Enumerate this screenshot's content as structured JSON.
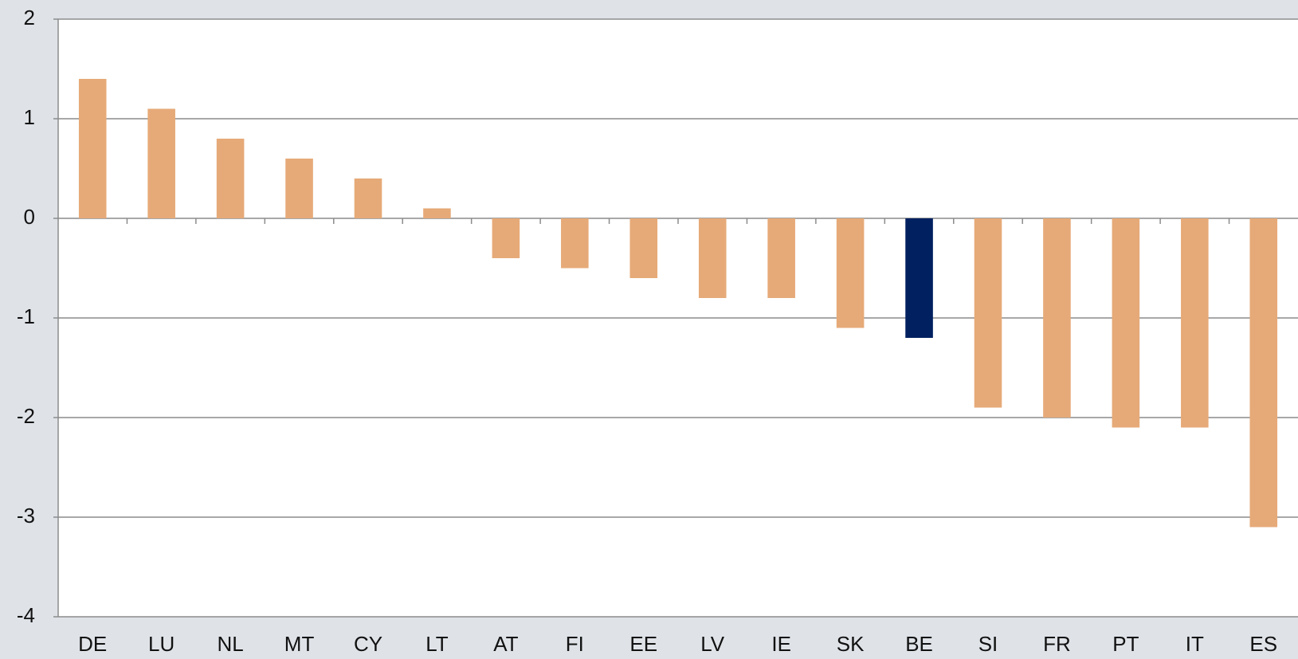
{
  "chart_data": {
    "type": "bar",
    "categories": [
      "DE",
      "LU",
      "NL",
      "MT",
      "CY",
      "LT",
      "AT",
      "FI",
      "EE",
      "LV",
      "IE",
      "SK",
      "BE",
      "SI",
      "FR",
      "PT",
      "IT",
      "ES"
    ],
    "values": [
      1.4,
      1.1,
      0.8,
      0.6,
      0.4,
      0.1,
      -0.4,
      -0.5,
      -0.6,
      -0.8,
      -0.8,
      -1.1,
      -1.2,
      -1.9,
      -2.0,
      -2.1,
      -2.1,
      -3.1
    ],
    "colors": [
      "#e6aa78",
      "#e6aa78",
      "#e6aa78",
      "#e6aa78",
      "#e6aa78",
      "#e6aa78",
      "#e6aa78",
      "#e6aa78",
      "#e6aa78",
      "#e6aa78",
      "#e6aa78",
      "#e6aa78",
      "#002060",
      "#e6aa78",
      "#e6aa78",
      "#e6aa78",
      "#e6aa78",
      "#e6aa78"
    ],
    "ylim": [
      -4,
      2
    ],
    "yticks": [
      -4,
      -3,
      -2,
      -1,
      0,
      1,
      2
    ],
    "grid": true
  }
}
